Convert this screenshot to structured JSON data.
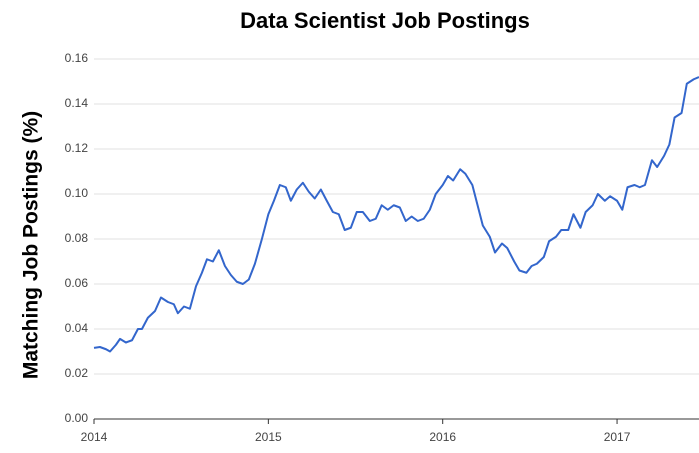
{
  "chart_data": {
    "type": "line",
    "title": "Data Scientist Job Postings",
    "y_label": "Matching Job Postings (%)",
    "x": [
      2014.0,
      2014.034,
      2014.069,
      2014.092,
      2014.126,
      2014.149,
      2014.183,
      2014.218,
      2014.252,
      2014.275,
      2014.309,
      2014.35,
      2014.384,
      2014.424,
      2014.458,
      2014.481,
      2014.516,
      2014.55,
      2014.585,
      2014.619,
      2014.648,
      2014.682,
      2014.716,
      2014.751,
      2014.785,
      2014.819,
      2014.854,
      2014.888,
      2014.923,
      2014.963,
      2015.0,
      2015.032,
      2015.066,
      2015.1,
      2015.129,
      2015.163,
      2015.198,
      2015.232,
      2015.266,
      2015.301,
      2015.335,
      2015.37,
      2015.404,
      2015.438,
      2015.473,
      2015.507,
      2015.542,
      2015.582,
      2015.616,
      2015.65,
      2015.685,
      2015.719,
      2015.754,
      2015.788,
      2015.822,
      2015.857,
      2015.891,
      2015.926,
      2015.96,
      2016.0,
      2016.03,
      2016.06,
      2016.1,
      2016.13,
      2016.17,
      2016.2,
      2016.23,
      2016.27,
      2016.3,
      2016.34,
      2016.37,
      2016.41,
      2016.44,
      2016.48,
      2016.51,
      2016.54,
      2016.58,
      2016.61,
      2016.65,
      2016.68,
      2016.72,
      2016.75,
      2016.79,
      2016.82,
      2016.86,
      2016.89,
      2016.93,
      2016.96,
      2017.0,
      2017.03,
      2017.06,
      2017.1,
      2017.13,
      2017.16,
      2017.2,
      2017.23,
      2017.27,
      2017.3,
      2017.33,
      2017.37,
      2017.4,
      2017.44,
      2017.47
    ],
    "series": [
      {
        "name": "Data Scientist",
        "color": "#3366cc",
        "values": [
          0.0316,
          0.032,
          0.031,
          0.03,
          0.033,
          0.0356,
          0.034,
          0.035,
          0.04,
          0.04,
          0.045,
          0.048,
          0.054,
          0.052,
          0.051,
          0.047,
          0.05,
          0.049,
          0.059,
          0.065,
          0.071,
          0.07,
          0.075,
          0.068,
          0.064,
          0.061,
          0.06,
          0.062,
          0.069,
          0.08,
          0.091,
          0.097,
          0.104,
          0.103,
          0.097,
          0.102,
          0.105,
          0.101,
          0.098,
          0.102,
          0.097,
          0.092,
          0.091,
          0.084,
          0.085,
          0.092,
          0.092,
          0.088,
          0.089,
          0.095,
          0.093,
          0.095,
          0.094,
          0.088,
          0.09,
          0.088,
          0.089,
          0.093,
          0.1,
          0.104,
          0.108,
          0.106,
          0.111,
          0.109,
          0.104,
          0.095,
          0.086,
          0.081,
          0.074,
          0.078,
          0.076,
          0.07,
          0.066,
          0.065,
          0.068,
          0.069,
          0.072,
          0.079,
          0.081,
          0.084,
          0.084,
          0.091,
          0.085,
          0.092,
          0.095,
          0.1,
          0.097,
          0.099,
          0.097,
          0.093,
          0.103,
          0.104,
          0.103,
          0.104,
          0.115,
          0.112,
          0.117,
          0.122,
          0.134,
          0.136,
          0.149,
          0.151,
          0.152
        ]
      }
    ],
    "xlim": [
      2014,
      2017.47
    ],
    "xticks": [
      2014,
      2015,
      2016,
      2017
    ],
    "ylim": [
      0,
      0.16
    ],
    "yticks": [
      {
        "value": 0,
        "label": "0.00"
      },
      0.02,
      0.04,
      0.06,
      0.08,
      {
        "value": 0.1,
        "label": "0.10"
      },
      0.12,
      0.14,
      0.16
    ],
    "grid": true
  }
}
